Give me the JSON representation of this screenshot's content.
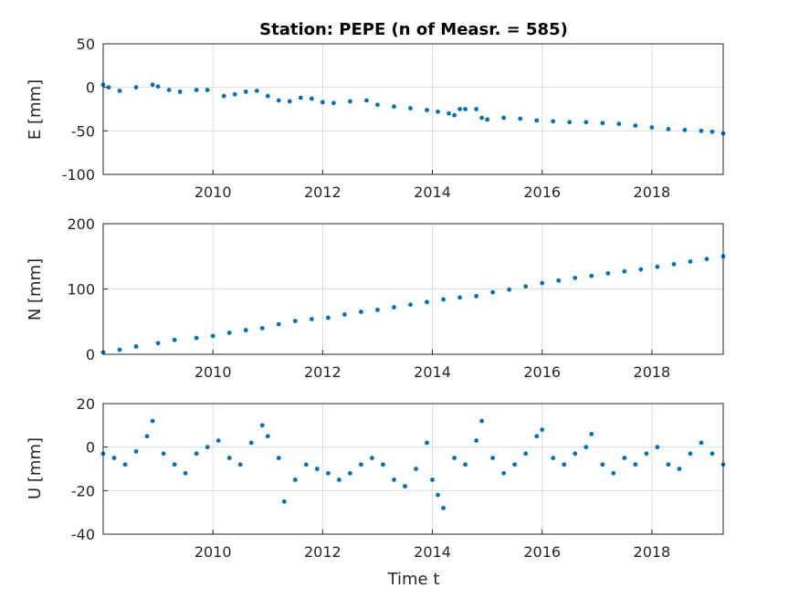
{
  "chart_data": {
    "type": "scatter",
    "title": "Station: PEPE (n of Measr. = 585)",
    "xlabel": "Time t",
    "xlim": [
      2008.0,
      2019.3
    ],
    "xticks": [
      2010,
      2012,
      2014,
      2016,
      2018
    ],
    "grid": true,
    "marker_color": "#0072BD",
    "panels": [
      {
        "name": "E",
        "ylabel": "E [mm]",
        "ylim": [
          -100,
          50
        ],
        "yticks": [
          -100,
          -50,
          0,
          50
        ],
        "x": [
          2008.0,
          2008.1,
          2008.3,
          2008.6,
          2008.9,
          2009.0,
          2009.2,
          2009.4,
          2009.7,
          2009.9,
          2010.2,
          2010.4,
          2010.6,
          2010.8,
          2011.0,
          2011.2,
          2011.4,
          2011.6,
          2011.8,
          2012.0,
          2012.2,
          2012.5,
          2012.8,
          2013.0,
          2013.3,
          2013.6,
          2013.9,
          2014.1,
          2014.3,
          2014.4,
          2014.5,
          2014.6,
          2014.8,
          2014.9,
          2015.0,
          2015.3,
          2015.6,
          2015.9,
          2016.2,
          2016.5,
          2016.8,
          2017.1,
          2017.4,
          2017.7,
          2018.0,
          2018.3,
          2018.6,
          2018.9,
          2019.1,
          2019.3
        ],
        "y": [
          3,
          0,
          -4,
          0,
          3,
          1,
          -3,
          -5,
          -3,
          -3,
          -10,
          -8,
          -5,
          -4,
          -10,
          -15,
          -16,
          -12,
          -13,
          -17,
          -18,
          -16,
          -15,
          -20,
          -22,
          -24,
          -26,
          -28,
          -30,
          -32,
          -25,
          -25,
          -25,
          -35,
          -37,
          -35,
          -36,
          -38,
          -39,
          -40,
          -40,
          -41,
          -42,
          -44,
          -46,
          -48,
          -49,
          -50,
          -51,
          -53
        ]
      },
      {
        "name": "N",
        "ylabel": "N [mm]",
        "ylim": [
          0,
          200
        ],
        "yticks": [
          0,
          100,
          200
        ],
        "x": [
          2008.0,
          2008.3,
          2008.6,
          2009.0,
          2009.3,
          2009.7,
          2010.0,
          2010.3,
          2010.6,
          2010.9,
          2011.2,
          2011.5,
          2011.8,
          2012.1,
          2012.4,
          2012.7,
          2013.0,
          2013.3,
          2013.6,
          2013.9,
          2014.2,
          2014.5,
          2014.8,
          2015.1,
          2015.4,
          2015.7,
          2016.0,
          2016.3,
          2016.6,
          2016.9,
          2017.2,
          2017.5,
          2017.8,
          2018.1,
          2018.4,
          2018.7,
          2019.0,
          2019.3
        ],
        "y": [
          3,
          7,
          12,
          17,
          22,
          25,
          28,
          33,
          37,
          40,
          46,
          51,
          54,
          56,
          61,
          65,
          68,
          72,
          76,
          80,
          84,
          87,
          89,
          95,
          99,
          104,
          109,
          113,
          117,
          120,
          124,
          127,
          130,
          134,
          138,
          142,
          146,
          150
        ]
      },
      {
        "name": "U",
        "ylabel": "U [mm]",
        "ylim": [
          -40,
          20
        ],
        "yticks": [
          -40,
          -20,
          0,
          20
        ],
        "x": [
          2008.0,
          2008.2,
          2008.4,
          2008.6,
          2008.8,
          2008.9,
          2009.1,
          2009.3,
          2009.5,
          2009.7,
          2009.9,
          2010.1,
          2010.3,
          2010.5,
          2010.7,
          2010.9,
          2011.0,
          2011.2,
          2011.3,
          2011.5,
          2011.7,
          2011.9,
          2012.1,
          2012.3,
          2012.5,
          2012.7,
          2012.9,
          2013.1,
          2013.3,
          2013.5,
          2013.7,
          2013.9,
          2014.0,
          2014.1,
          2014.2,
          2014.4,
          2014.6,
          2014.8,
          2014.9,
          2015.1,
          2015.3,
          2015.5,
          2015.7,
          2015.9,
          2016.0,
          2016.2,
          2016.4,
          2016.6,
          2016.8,
          2016.9,
          2017.1,
          2017.3,
          2017.5,
          2017.7,
          2017.9,
          2018.1,
          2018.3,
          2018.5,
          2018.7,
          2018.9,
          2019.1,
          2019.3
        ],
        "y": [
          -3,
          -5,
          -8,
          -2,
          5,
          12,
          -3,
          -8,
          -12,
          -3,
          0,
          3,
          -5,
          -8,
          2,
          10,
          5,
          -5,
          -25,
          -15,
          -8,
          -10,
          -12,
          -15,
          -12,
          -8,
          -5,
          -8,
          -15,
          -18,
          -10,
          2,
          -15,
          -22,
          -28,
          -5,
          -8,
          3,
          12,
          -5,
          -12,
          -8,
          -3,
          5,
          8,
          -5,
          -8,
          -3,
          0,
          6,
          -8,
          -12,
          -5,
          -8,
          -3,
          0,
          -8,
          -10,
          -3,
          2,
          -3,
          -8
        ]
      }
    ]
  }
}
